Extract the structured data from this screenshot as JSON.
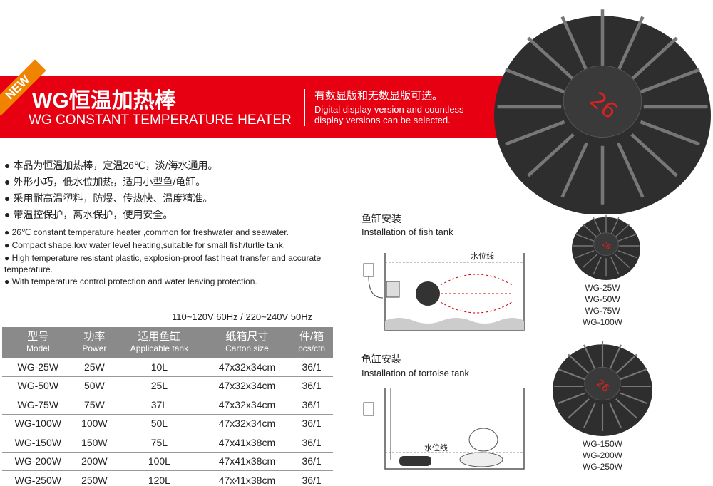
{
  "header": {
    "new_badge": "NEW",
    "title_cn": "WG恒温加热棒",
    "title_en": "WG CONSTANT TEMPERATURE HEATER",
    "sub_cn": "有数显版和无数显版可选。",
    "sub_en": "Digital display version and countless display versions can be selected."
  },
  "features_cn": [
    "● 本品为恒温加热棒，定温26℃，淡/海水通用。",
    "● 外形小巧，低水位加热，适用小型鱼/龟缸。",
    "● 采用耐高温塑料，防爆、传热快、温度精准。",
    "● 带温控保护，离水保护，使用安全。"
  ],
  "features_en": [
    "● 26℃ constant temperature heater ,common for freshwater and seawater.",
    "● Compact shape,low water level heating,suitable for small fish/turtle tank.",
    "● High temperature resistant plastic, explosion-proof fast heat transfer and accurate temperature.",
    "● With temperature control protection and water leaving protection."
  ],
  "voltage": "110~120V 60Hz / 220~240V 50Hz",
  "table": {
    "headers": [
      {
        "cn": "型号",
        "en": "Model"
      },
      {
        "cn": "功率",
        "en": "Power"
      },
      {
        "cn": "适用鱼缸",
        "en": "Applicable tank"
      },
      {
        "cn": "纸箱尺寸",
        "en": "Carton size"
      },
      {
        "cn": "件/箱",
        "en": "pcs/ctn"
      }
    ],
    "rows": [
      [
        "WG-25W",
        "25W",
        "10L",
        "47x32x34cm",
        "36/1"
      ],
      [
        "WG-50W",
        "50W",
        "25L",
        "47x32x34cm",
        "36/1"
      ],
      [
        "WG-75W",
        "75W",
        "37L",
        "47x32x34cm",
        "36/1"
      ],
      [
        "WG-100W",
        "100W",
        "50L",
        "47x32x34cm",
        "36/1"
      ],
      [
        "WG-150W",
        "150W",
        "75L",
        "47x41x38cm",
        "36/1"
      ],
      [
        "WG-200W",
        "200W",
        "100L",
        "47x41x38cm",
        "36/1"
      ],
      [
        "WG-250W",
        "250W",
        "120L",
        "47x41x38cm",
        "36/1"
      ]
    ]
  },
  "diagrams": [
    {
      "title_cn": "鱼缸安装",
      "title_en": "Installation of fish tank",
      "water_line": "水位线"
    },
    {
      "title_cn": "龟缸安装",
      "title_en": "Installation of tortoise tank",
      "water_line": "水位线"
    }
  ],
  "display_reading": "26",
  "models_small": [
    "WG-25W",
    "WG-50W",
    "WG-75W",
    "WG-100W"
  ],
  "models_large": [
    "WG-150W",
    "WG-200W",
    "WG-250W"
  ],
  "colors": {
    "brand_red": "#e60012",
    "badge_orange": "#f08300",
    "table_header": "#8a8a8a"
  }
}
